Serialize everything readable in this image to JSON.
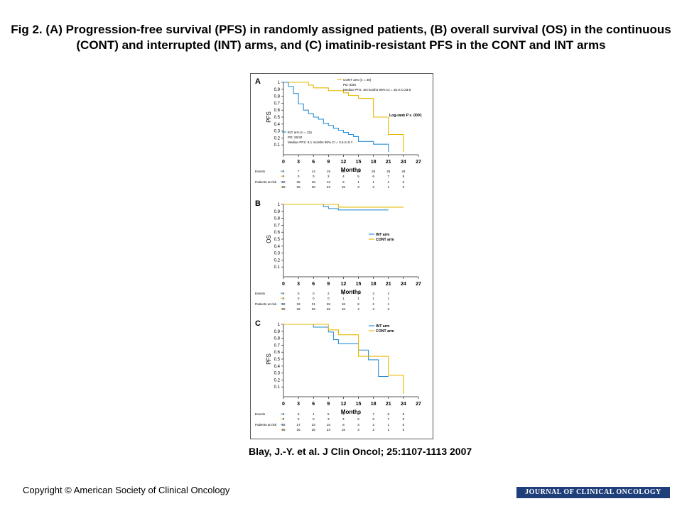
{
  "title": "Fig 2. (A) Progression-free survival (PFS) in randomly assigned patients, (B) overall survival (OS) in the continuous (CONT) and interrupted (INT) arms, and (C) imatinib-resistant PFS in the CONT and INT arms",
  "citation": "Blay, J.-Y. et al. J Clin Oncol; 25:1107-1113 2007",
  "copyright": "Copyright © American Society of Clinical Oncology",
  "journal_banner": "JOURNAL OF CLINICAL ONCOLOGY",
  "colors": {
    "INT": "#2b8fd6",
    "CONT": "#e6b800"
  },
  "chart_data": [
    {
      "type": "line",
      "panel_label": "A",
      "ylabel": "PFS",
      "xlabel": "Months",
      "xlim": [
        0,
        27
      ],
      "ylim": [
        0,
        1.0
      ],
      "xticks": [
        0,
        3,
        6,
        9,
        12,
        15,
        18,
        21,
        24,
        27
      ],
      "yticks": [
        0.1,
        0.2,
        0.3,
        0.4,
        0.5,
        0.6,
        0.7,
        0.8,
        0.9,
        1.0
      ],
      "annotation": "Log-rank P ≤ .0001",
      "legend_blocks": [
        {
          "arm": "CONT",
          "lines": [
            "CONT arm (n = 26)",
            "PD: 8/26",
            "Median PFS: 18 months 95% CI = 15.0 to 23.6"
          ]
        },
        {
          "arm": "INT",
          "lines": [
            "INT arm (n = 32)",
            "PD: 26/32",
            "Median PFS: 6.1 months 95% CI = 3.5 to 9.7"
          ]
        }
      ],
      "series": [
        {
          "arm": "CONT",
          "x": [
            0,
            2,
            5,
            6,
            9,
            12,
            13,
            15,
            18,
            21,
            24
          ],
          "y": [
            1.0,
            1.0,
            0.96,
            0.92,
            0.88,
            0.85,
            0.81,
            0.77,
            0.5,
            0.25,
            0.0
          ]
        },
        {
          "arm": "INT",
          "x": [
            0,
            1,
            2,
            3,
            4,
            5,
            6,
            7,
            8,
            9,
            10,
            11,
            12,
            13,
            14,
            15,
            18,
            21
          ],
          "y": [
            1.0,
            0.94,
            0.84,
            0.69,
            0.6,
            0.55,
            0.5,
            0.47,
            0.41,
            0.38,
            0.34,
            0.31,
            0.28,
            0.25,
            0.22,
            0.15,
            0.11,
            0.0
          ]
        }
      ],
      "table": {
        "headers": [
          "Events",
          "Patients at risk"
        ],
        "rows": [
          {
            "label": "Events",
            "arm": "INT",
            "values": [
              "0",
              "7",
              "14",
              "19",
              "23",
              "25",
              "25",
              "25",
              "26"
            ]
          },
          {
            "label": "",
            "arm": "CONT",
            "values": [
              "0",
              "0",
              "0",
              "3",
              "4",
              "5",
              "6",
              "7",
              "8"
            ]
          },
          {
            "label": "Patients at risk",
            "arm": "INT",
            "values": [
              "32",
              "25",
              "18",
              "13",
              "6",
              "1",
              "1",
              "1",
              "0"
            ]
          },
          {
            "label": "",
            "arm": "CONT",
            "values": [
              "26",
              "26",
              "26",
              "23",
              "15",
              "3",
              "2",
              "1",
              "0"
            ]
          }
        ]
      }
    },
    {
      "type": "line",
      "panel_label": "B",
      "ylabel": "OS",
      "xlabel": "Months",
      "xlim": [
        0,
        27
      ],
      "ylim": [
        0,
        1.0
      ],
      "xticks": [
        0,
        3,
        6,
        9,
        12,
        15,
        18,
        21,
        24,
        27
      ],
      "yticks": [
        0.1,
        0.2,
        0.3,
        0.4,
        0.5,
        0.6,
        0.7,
        0.8,
        0.9,
        1.0
      ],
      "legend": [
        {
          "arm": "INT",
          "label": "INT arm"
        },
        {
          "arm": "CONT",
          "label": "CONT arm"
        }
      ],
      "series": [
        {
          "arm": "INT",
          "x": [
            0,
            8,
            9,
            11,
            21
          ],
          "y": [
            1.0,
            0.97,
            0.94,
            0.92,
            0.92
          ]
        },
        {
          "arm": "CONT",
          "x": [
            0,
            11,
            24
          ],
          "y": [
            1.0,
            0.96,
            0.96
          ]
        }
      ],
      "table": {
        "headers": [
          "Events",
          "Patients at risk"
        ],
        "rows": [
          {
            "label": "Events",
            "arm": "INT",
            "values": [
              "0",
              "0",
              "0",
              "2",
              "2",
              "2",
              "2",
              "2"
            ]
          },
          {
            "label": "",
            "arm": "CONT",
            "values": [
              "0",
              "0",
              "0",
              "0",
              "1",
              "1",
              "1",
              "1"
            ]
          },
          {
            "label": "Patients at risk",
            "arm": "INT",
            "values": [
              "32",
              "32",
              "31",
              "28",
              "18",
              "8",
              "2",
              "1"
            ]
          },
          {
            "label": "",
            "arm": "CONT",
            "values": [
              "26",
              "26",
              "26",
              "26",
              "16",
              "4",
              "3",
              "3"
            ]
          }
        ]
      }
    },
    {
      "type": "line",
      "panel_label": "C",
      "ylabel": "PFS",
      "xlabel": "Months",
      "xlim": [
        0,
        27
      ],
      "ylim": [
        0,
        1.0
      ],
      "xticks": [
        0,
        3,
        6,
        9,
        12,
        15,
        18,
        21,
        24,
        27
      ],
      "yticks": [
        0.1,
        0.2,
        0.3,
        0.4,
        0.5,
        0.6,
        0.7,
        0.8,
        0.9,
        1.0
      ],
      "legend": [
        {
          "arm": "INT",
          "label": "INT arm"
        },
        {
          "arm": "CONT",
          "label": "CONT arm"
        }
      ],
      "series": [
        {
          "arm": "INT",
          "x": [
            0,
            6,
            9,
            10,
            11,
            15,
            17,
            19,
            21
          ],
          "y": [
            1.0,
            0.96,
            0.89,
            0.78,
            0.72,
            0.63,
            0.49,
            0.25,
            0.25
          ]
        },
        {
          "arm": "CONT",
          "x": [
            0,
            9,
            11,
            15,
            18,
            21,
            24
          ],
          "y": [
            1.0,
            0.92,
            0.85,
            0.54,
            0.54,
            0.27,
            0.0
          ]
        }
      ],
      "table": {
        "headers": [
          "Events",
          "Patients at risk"
        ],
        "rows": [
          {
            "label": "Events",
            "arm": "INT",
            "values": [
              "0",
              "0",
              "1",
              "5",
              "6",
              "6",
              "7",
              "8",
              "8"
            ]
          },
          {
            "label": "",
            "arm": "CONT",
            "values": [
              "0",
              "0",
              "0",
              "3",
              "4",
              "5",
              "6",
              "7",
              "8"
            ]
          },
          {
            "label": "Patients at risk",
            "arm": "INT",
            "values": [
              "32",
              "27",
              "23",
              "15",
              "8",
              "3",
              "2",
              "1",
              "0"
            ]
          },
          {
            "label": "",
            "arm": "CONT",
            "values": [
              "26",
              "26",
              "26",
              "23",
              "15",
              "3",
              "2",
              "1",
              "0"
            ]
          }
        ]
      }
    }
  ]
}
